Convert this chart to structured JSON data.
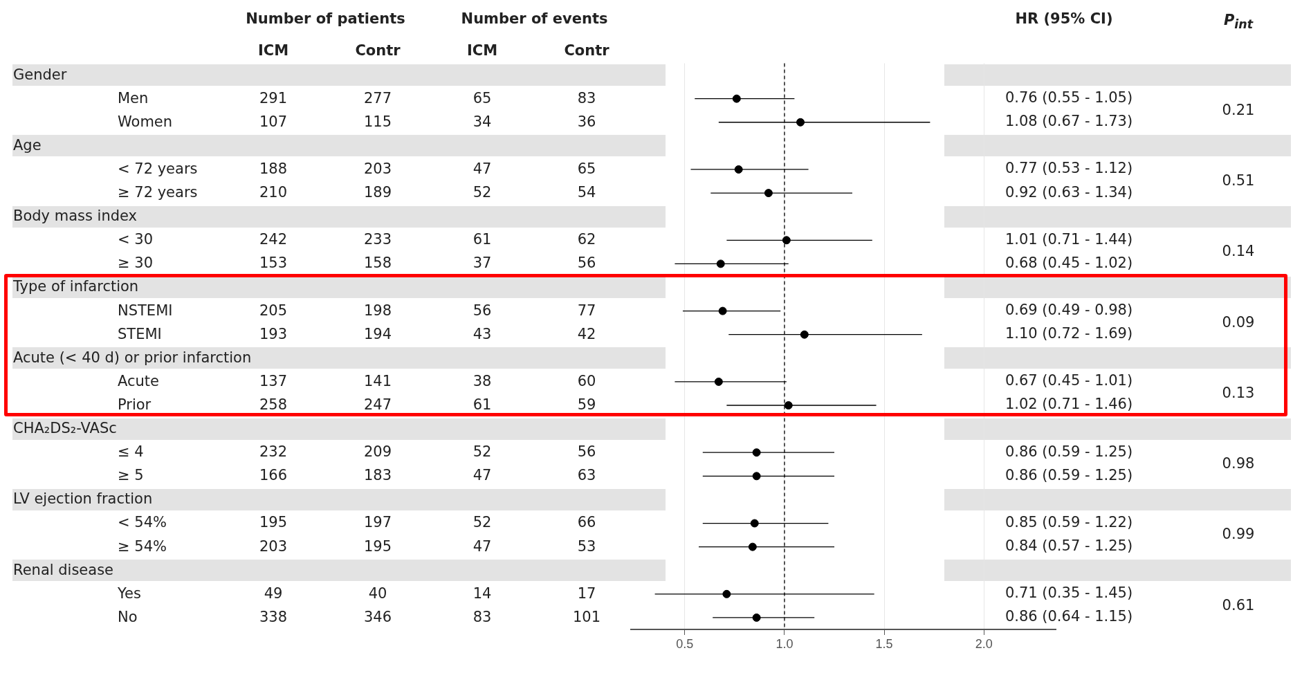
{
  "chart_data": [
    {
      "type": "other",
      "categories": [
        "Gender",
        "Men",
        "Women",
        "Age",
        "< 72 years",
        "≥ 72 years",
        "Body mass index",
        "< 30",
        "≥ 30",
        "Type of infarction",
        "NSTEMI",
        "STEMI",
        "Acute (< 40 d) or prior infarction",
        "Acute",
        "Prior",
        "CHA₂DS₂-VASc",
        "≤ 4",
        "≥ 5",
        "LV ejection fraction",
        "< 54%",
        "≥ 54%",
        "Renal disease",
        "Yes",
        "No"
      ],
      "series": [
        {
          "name": "ICM",
          "values": [
            null,
            291,
            107,
            null,
            188,
            210,
            null,
            242,
            153,
            null,
            205,
            193,
            null,
            137,
            258,
            null,
            232,
            166,
            null,
            195,
            203,
            null,
            49,
            338
          ]
        },
        {
          "name": "Contr",
          "values": [
            null,
            277,
            115,
            null,
            203,
            189,
            null,
            233,
            158,
            null,
            198,
            194,
            null,
            141,
            247,
            null,
            209,
            183,
            null,
            197,
            195,
            null,
            40,
            346
          ]
        },
        {
          "name": "ICM",
          "values": [
            null,
            65,
            34,
            null,
            47,
            52,
            null,
            61,
            37,
            null,
            56,
            43,
            null,
            38,
            61,
            null,
            52,
            47,
            null,
            52,
            47,
            null,
            14,
            83
          ]
        },
        {
          "name": "Contr",
          "values": [
            null,
            83,
            36,
            null,
            65,
            54,
            null,
            62,
            56,
            null,
            77,
            42,
            null,
            60,
            59,
            null,
            56,
            63,
            null,
            66,
            53,
            null,
            17,
            101
          ]
        }
      ],
      "annotations": [
        "Number of patients",
        "Number of events"
      ],
      "data_labels": true
    },
    {
      "type": "scatter",
      "title": "HR (95% CI)",
      "orientation": "horizontal",
      "categories": [
        null,
        null,
        null,
        null,
        null,
        null,
        null,
        null,
        null,
        null,
        null,
        null,
        null,
        null,
        null,
        null,
        null,
        null,
        null,
        null,
        null,
        null,
        null,
        null
      ],
      "values": [
        null,
        0.76,
        1.08,
        null,
        0.77,
        0.92,
        null,
        1.01,
        0.68,
        null,
        0.69,
        1.1,
        null,
        0.67,
        1.02,
        null,
        0.86,
        0.86,
        null,
        0.85,
        0.84,
        null,
        0.71,
        0.86
      ],
      "errors": [
        null,
        [
          0.55,
          1.05
        ],
        [
          0.67,
          1.73
        ],
        null,
        [
          0.53,
          1.12
        ],
        [
          0.63,
          1.34
        ],
        null,
        [
          0.71,
          1.44
        ],
        [
          0.45,
          1.02
        ],
        null,
        [
          0.49,
          0.98
        ],
        [
          0.72,
          1.69
        ],
        null,
        [
          0.45,
          1.01
        ],
        [
          0.71,
          1.46
        ],
        null,
        [
          0.59,
          1.25
        ],
        [
          0.59,
          1.25
        ],
        null,
        [
          0.59,
          1.22
        ],
        [
          0.57,
          1.25
        ],
        null,
        [
          0.35,
          1.45
        ],
        [
          0.64,
          1.15
        ]
      ],
      "value_labels": [
        null,
        "0.76 (0.55 - 1.05)",
        "1.08 (0.67 - 1.73)",
        null,
        "0.77 (0.53 - 1.12)",
        "0.92 (0.63 - 1.34)",
        null,
        "1.01 (0.71 - 1.44)",
        "0.68 (0.45 - 1.02)",
        null,
        "0.69 (0.49 - 0.98)",
        "1.10 (0.72 - 1.69)",
        null,
        "0.67 (0.45 - 1.01)",
        "1.02 (0.71 - 1.46)",
        null,
        "0.86 (0.59 - 1.25)",
        "0.86 (0.59 - 1.25)",
        null,
        "0.85 (0.59 - 1.22)",
        "0.84 (0.57 - 1.25)",
        null,
        "0.71 (0.35 - 1.45)",
        "0.86 (0.64 - 1.15)"
      ],
      "color": "#000000",
      "xlim": [
        0.23,
        2.36
      ],
      "xticks": [
        0.5,
        {
          "value": 1,
          "label": "1.0"
        },
        1.5,
        {
          "value": 2,
          "label": "2.0"
        }
      ],
      "grid": "x",
      "marker": "circle",
      "tick_labels": "x",
      "ref_lines": [
        {
          "axis": "x",
          "value": 1,
          "line_style": "dashed",
          "color": "#000000"
        }
      ]
    },
    {
      "type": "other",
      "title": "P$_{int}$",
      "categories": [
        null,
        null,
        null,
        null,
        null,
        null,
        null,
        null
      ],
      "values": [
        0.21,
        0.51,
        0.14,
        0.09,
        0.13,
        0.98,
        0.99,
        0.61
      ],
      "data_labels": true
    }
  ]
}
